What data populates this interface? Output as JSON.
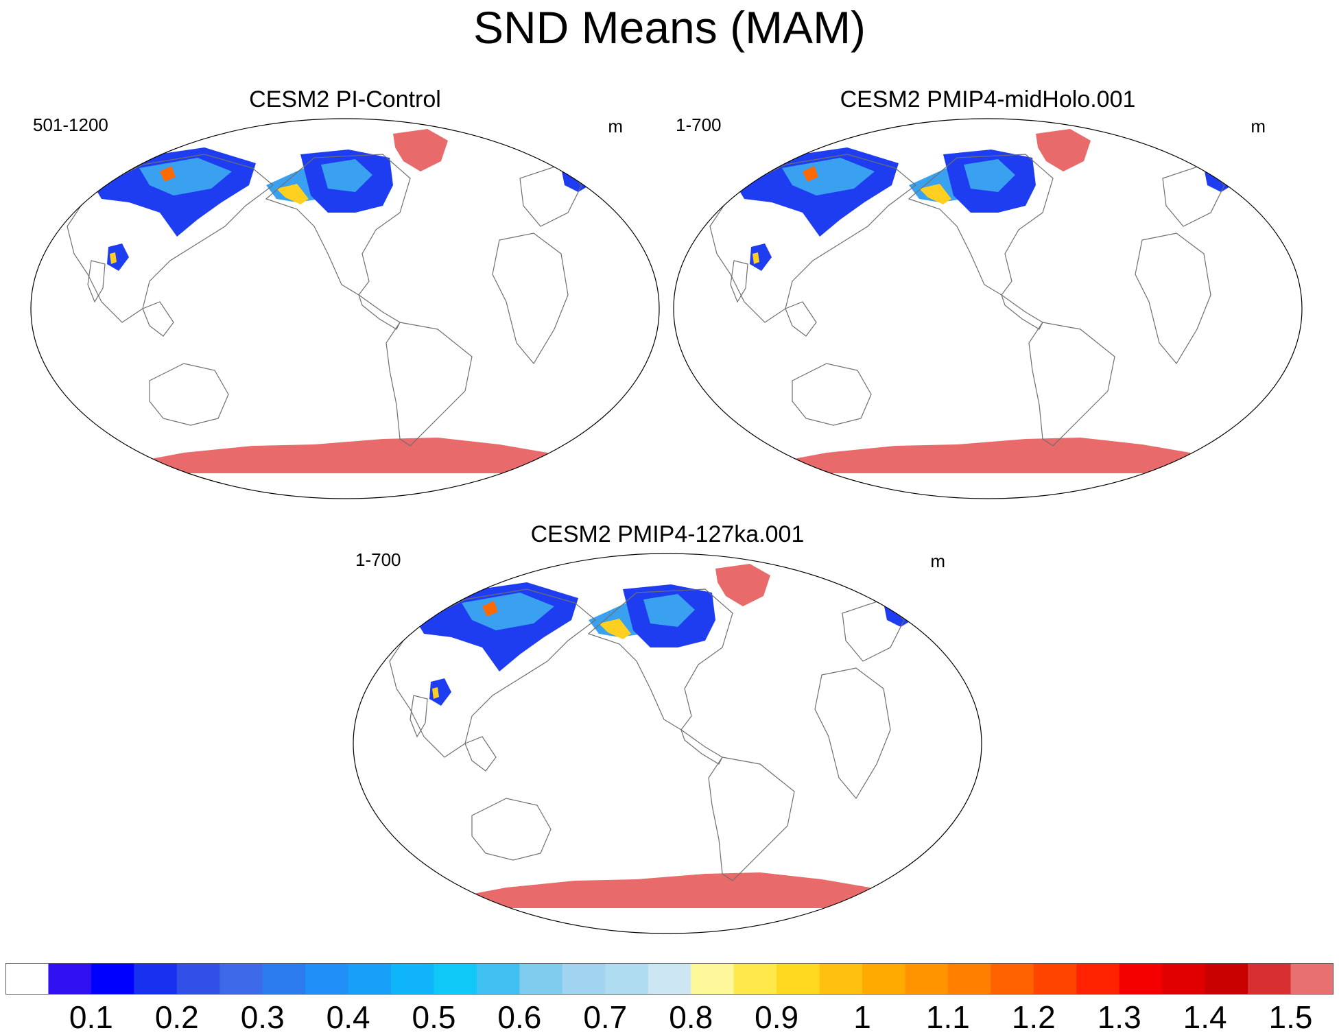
{
  "title": "SND Means (MAM)",
  "panels": [
    {
      "title": "CESM2 PI-Control",
      "left_string": "501-1200",
      "right_string": "m"
    },
    {
      "title": "CESM2 PMIP4-midHolo.001",
      "left_string": "1-700",
      "right_string": "m"
    },
    {
      "title": "CESM2 PMIP4-127ka.001",
      "left_string": "1-700",
      "right_string": "m"
    }
  ],
  "colorbar": {
    "labels": [
      "0.1",
      "0.2",
      "0.3",
      "0.4",
      "0.5",
      "0.6",
      "0.7",
      "0.8",
      "0.9",
      "1",
      "1.1",
      "1.2",
      "1.3",
      "1.4",
      "1.5"
    ],
    "colors": [
      "#ffffff",
      "#3010f0",
      "#0000ff",
      "#1830f0",
      "#3050e8",
      "#3c6ae8",
      "#2c7cf0",
      "#2090f8",
      "#18a0f8",
      "#10b4f8",
      "#10c8f8",
      "#40c0f0",
      "#80ccee",
      "#a0d4f0",
      "#b0dcf0",
      "#cce6f4",
      "#fef89a",
      "#ffe84a",
      "#ffd820",
      "#ffc010",
      "#ffaa00",
      "#ff9400",
      "#ff7e00",
      "#ff6200",
      "#ff4400",
      "#ff2200",
      "#f40000",
      "#e00000",
      "#c80000",
      "#d83030",
      "#e87070"
    ]
  },
  "map_colors": {
    "land_outline": "#6e6e6e",
    "ice_sheet": "#e86a6a",
    "snow_low": "#1e3cf0",
    "snow_mid": "#3aa0f0",
    "snow_high": "#ffd020",
    "snow_peak": "#ff6a00"
  }
}
